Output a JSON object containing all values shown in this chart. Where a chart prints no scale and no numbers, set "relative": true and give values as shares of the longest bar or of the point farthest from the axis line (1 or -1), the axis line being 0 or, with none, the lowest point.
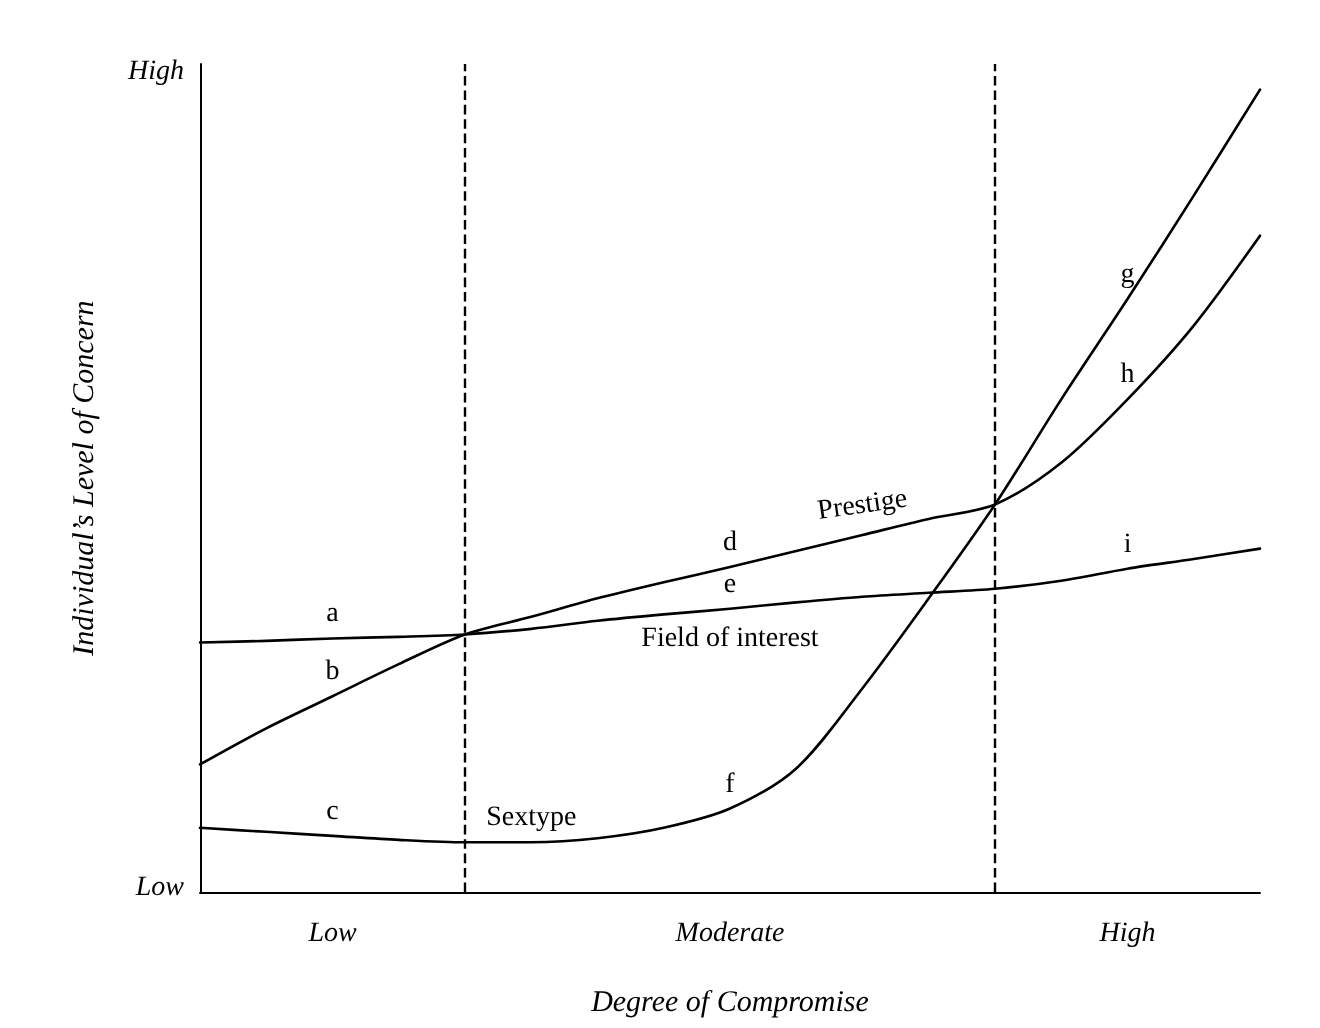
{
  "chart_data": {
    "type": "line",
    "relative": true,
    "xlabel": "Degree of Compromise",
    "ylabel": "Individual’s Level of Concern",
    "categories": [
      null,
      null,
      "Low",
      null,
      null,
      null,
      null,
      null,
      "Moderate",
      null,
      null,
      null,
      null,
      null,
      "High",
      null,
      null
    ],
    "series": [
      {
        "name": "Prestige",
        "color": "#000000",
        "values": [
          0.159,
          0.204,
          0.244,
          0.284,
          0.321,
          0.343,
          0.366,
          0.386,
          0.405,
          0.425,
          0.445,
          0.465,
          0.483,
          0.535,
          0.614,
          0.706,
          0.818
        ]
      },
      {
        "name": "Field of interest",
        "color": "#000000",
        "values": [
          0.311,
          0.313,
          0.316,
          0.318,
          0.321,
          0.328,
          0.338,
          0.346,
          0.353,
          0.361,
          0.368,
          0.373,
          0.378,
          0.388,
          0.403,
          0.415,
          0.428
        ]
      },
      {
        "name": "Sextype",
        "color": "#000000",
        "values": [
          0.08,
          0.075,
          0.07,
          0.065,
          0.062,
          0.062,
          0.067,
          0.08,
          0.104,
          0.154,
          0.254,
          0.366,
          0.483,
          0.614,
          0.739,
          0.868,
          1
        ]
      }
    ],
    "annotations": [
      "High",
      "Low",
      {
        "text": "a",
        "x": "Low",
        "y": 0.316
      },
      {
        "text": "b",
        "x": "Low",
        "y": 0.244
      },
      {
        "text": "c",
        "x": "Low",
        "y": 0.07
      },
      {
        "text": "d",
        "x": "Moderate",
        "y": 0.405
      },
      {
        "text": "e",
        "x": "Moderate",
        "y": 0.353
      },
      {
        "text": "f",
        "x": "Moderate",
        "y": 0.104
      },
      {
        "text": "g",
        "x": "High",
        "y": 0.739
      },
      {
        "text": "h",
        "x": "High",
        "y": 0.614
      },
      {
        "text": "i",
        "x": "High",
        "y": 0.403
      }
    ],
    "line_style": "solid",
    "marker": "none",
    "legend": false
  }
}
